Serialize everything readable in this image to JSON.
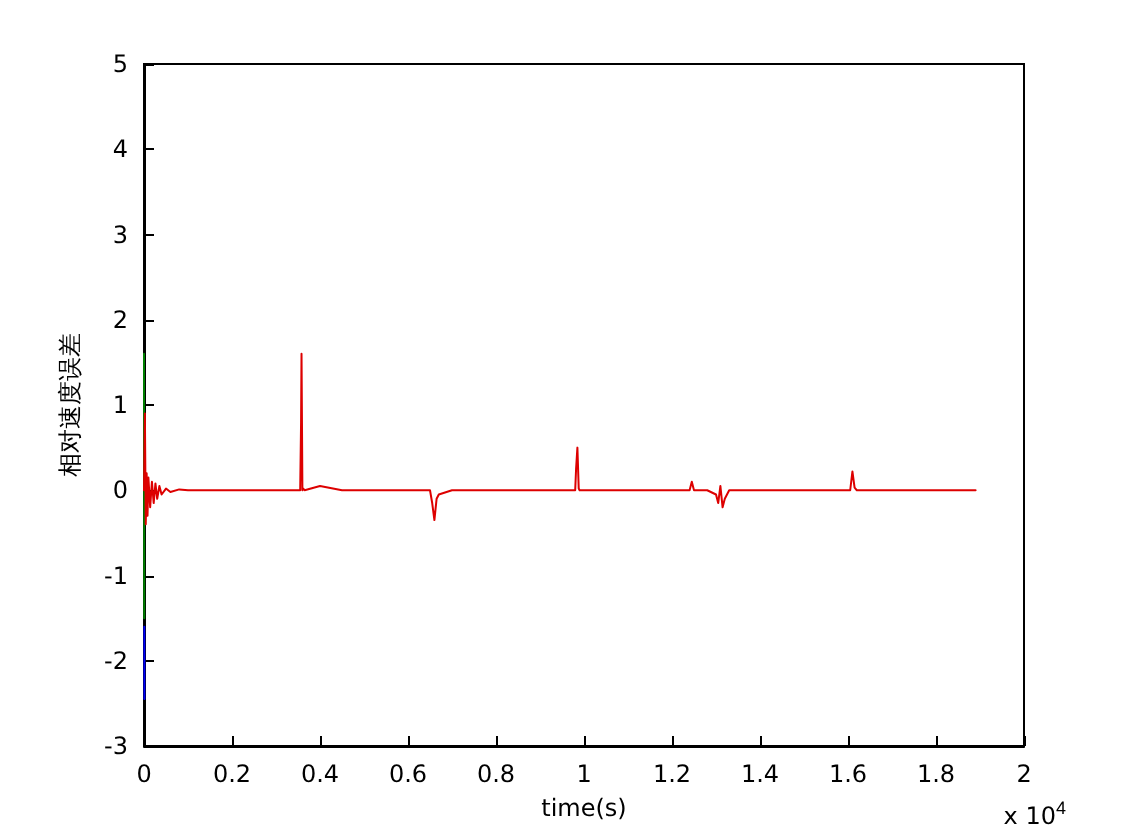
{
  "chart_data": {
    "type": "line",
    "xlabel": "time(s)",
    "ylabel": "相对速度误差",
    "annotations": [
      "x 10$^{4}$"
    ],
    "xlim": [
      0,
      2
    ],
    "ylim": [
      -3,
      5
    ],
    "xticks": [
      0,
      0.2,
      0.4,
      0.6,
      0.8,
      1,
      1.2,
      1.4,
      1.6,
      1.8,
      2
    ],
    "yticks": [
      -3,
      -2,
      -1,
      0,
      1,
      2,
      3,
      4,
      5
    ],
    "grid": false,
    "marker": "none",
    "line_style": "solid",
    "series": [
      {
        "color": "#008000",
        "x": [
          0,
          0.0005
        ],
        "values": [
          1.6,
          -1.5
        ]
      },
      {
        "color": "#0000ff",
        "x": [
          0.0008,
          0.001
        ],
        "values": [
          -1.6,
          -2.45
        ]
      },
      {
        "color": "#dd0000",
        "x": [
          0,
          0.002,
          0.004,
          0.006,
          0.008,
          0.01,
          0.014,
          0.018,
          0.022,
          0.026,
          0.03,
          0.035,
          0.04,
          0.05,
          0.06,
          0.08,
          0.1,
          0.2,
          0.3,
          0.355,
          0.357,
          0.358,
          0.36,
          0.362,
          0.365,
          0.4,
          0.45,
          0.5,
          0.6,
          0.65,
          0.655,
          0.66,
          0.665,
          0.67,
          0.7,
          0.8,
          0.9,
          0.98,
          0.982,
          0.985,
          0.988,
          0.99,
          1.1,
          1.2,
          1.24,
          1.245,
          1.25,
          1.28,
          1.3,
          1.305,
          1.31,
          1.315,
          1.32,
          1.33,
          1.4,
          1.5,
          1.6,
          1.605,
          1.61,
          1.615,
          1.62,
          1.7,
          1.8,
          1.89
        ],
        "values": [
          0,
          0.9,
          -0.4,
          0.2,
          -0.3,
          0.15,
          -0.2,
          0.1,
          -0.15,
          0.08,
          -0.1,
          0.05,
          -0.05,
          0.02,
          -0.02,
          0.01,
          0,
          0,
          0,
          0,
          0.8,
          1.6,
          0,
          0.02,
          0,
          0.05,
          0,
          0,
          0,
          0,
          -0.15,
          -0.35,
          -0.1,
          -0.05,
          0,
          0,
          0,
          0,
          0.25,
          0.5,
          0.02,
          0,
          0,
          0,
          0,
          0.1,
          0,
          0,
          -0.05,
          -0.15,
          0.05,
          -0.2,
          -0.1,
          0,
          0,
          0,
          0,
          0,
          0.22,
          0.03,
          0,
          0,
          0,
          0
        ]
      }
    ]
  }
}
